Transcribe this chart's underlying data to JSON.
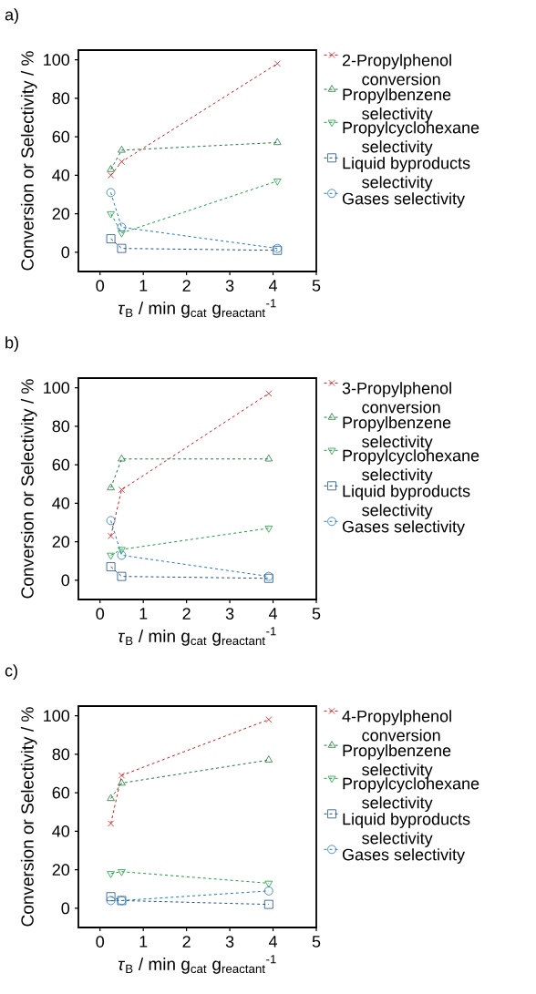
{
  "chart_data": [
    {
      "type": "line",
      "title": "a)",
      "xlabel": "*τ*$_{B}$ / min g$_{cat}$ g$_{reactant}$$^{-1}$",
      "ylabel": "Conversion or Selectivity / %",
      "xlim": [
        -0.5,
        5
      ],
      "ylim": [
        -10,
        105
      ],
      "xticks": [
        0,
        1,
        2,
        3,
        4,
        5
      ],
      "yticks": [
        0,
        20,
        40,
        60,
        80,
        100
      ],
      "legend": "right",
      "line_style": "dashed",
      "series": [
        {
          "name": "2-Propylphenol conversion",
          "color": "#d7191c",
          "marker": "cross",
          "x": [
            0.25,
            0.5,
            4.1
          ],
          "values": [
            40,
            47,
            98
          ]
        },
        {
          "name": "Propylbenzene selectivity",
          "color": "#1e7a3c",
          "marker": "triangle",
          "x": [
            0.25,
            0.5,
            4.1
          ],
          "values": [
            43,
            53,
            57
          ]
        },
        {
          "name": "Propylcyclohexane selectivity",
          "color": "#1a9e3f",
          "marker": "triangle-down",
          "x": [
            0.25,
            0.5,
            4.1
          ],
          "values": [
            20,
            10,
            37
          ]
        },
        {
          "name": "Liquid byproducts selectivity",
          "color": "#1f4f88",
          "marker": "square",
          "x": [
            0.25,
            0.5,
            4.1
          ],
          "values": [
            7,
            2,
            1
          ]
        },
        {
          "name": "Gases selectivity",
          "color": "#1f78c1",
          "marker": "circle",
          "x": [
            0.25,
            0.5,
            4.1
          ],
          "values": [
            31,
            13,
            2
          ]
        }
      ]
    },
    {
      "type": "line",
      "title": "b)",
      "xlabel": "*τ*$_{B}$ / min g$_{cat}$ g$_{reactant}$$^{-1}$",
      "ylabel": "Conversion or Selectivity / %",
      "xlim": [
        -0.5,
        5
      ],
      "ylim": [
        -10,
        105
      ],
      "xticks": [
        0,
        1,
        2,
        3,
        4,
        5
      ],
      "yticks": [
        0,
        20,
        40,
        60,
        80,
        100
      ],
      "legend": "right",
      "line_style": "dashed",
      "series": [
        {
          "name": "3-Propylphenol conversion",
          "color": "#d7191c",
          "marker": "cross",
          "x": [
            0.25,
            0.5,
            3.9
          ],
          "values": [
            23,
            47,
            97
          ]
        },
        {
          "name": "Propylbenzene selectivity",
          "color": "#1e7a3c",
          "marker": "triangle",
          "x": [
            0.25,
            0.5,
            3.9
          ],
          "values": [
            48,
            63,
            63
          ]
        },
        {
          "name": "Propylcyclohexane selectivity",
          "color": "#1a9e3f",
          "marker": "triangle-down",
          "x": [
            0.25,
            0.5,
            3.9
          ],
          "values": [
            13,
            16,
            27
          ]
        },
        {
          "name": "Liquid byproducts selectivity",
          "color": "#1f4f88",
          "marker": "square",
          "x": [
            0.25,
            0.5,
            3.9
          ],
          "values": [
            7,
            2,
            1
          ]
        },
        {
          "name": "Gases selectivity",
          "color": "#1f78c1",
          "marker": "circle",
          "x": [
            0.25,
            0.5,
            3.9
          ],
          "values": [
            31,
            13,
            2
          ]
        }
      ]
    },
    {
      "type": "line",
      "title": "c)",
      "xlabel": "*τ*$_{B}$ / min g$_{cat}$ g$_{reactant}$$^{-1}$",
      "ylabel": "Conversion or Selectivity / %",
      "xlim": [
        -0.5,
        5
      ],
      "ylim": [
        -10,
        105
      ],
      "xticks": [
        0,
        1,
        2,
        3,
        4,
        5
      ],
      "yticks": [
        0,
        20,
        40,
        60,
        80,
        100
      ],
      "legend": "right",
      "line_style": "dashed",
      "series": [
        {
          "name": "4-Propylphenol conversion",
          "color": "#d7191c",
          "marker": "cross",
          "x": [
            0.25,
            0.5,
            3.9
          ],
          "values": [
            44,
            69,
            98
          ]
        },
        {
          "name": "Propylbenzene selectivity",
          "color": "#1e7a3c",
          "marker": "triangle",
          "x": [
            0.25,
            0.5,
            3.9
          ],
          "values": [
            57,
            65,
            77
          ]
        },
        {
          "name": "Propylcyclohexane selectivity",
          "color": "#1a9e3f",
          "marker": "triangle-down",
          "x": [
            0.25,
            0.5,
            3.9
          ],
          "values": [
            18,
            19,
            13
          ]
        },
        {
          "name": "Liquid byproducts selectivity",
          "color": "#1f4f88",
          "marker": "square",
          "x": [
            0.25,
            0.5,
            3.9
          ],
          "values": [
            6,
            4,
            2
          ]
        },
        {
          "name": "Gases selectivity",
          "color": "#1f78c1",
          "marker": "circle",
          "x": [
            0.25,
            0.5,
            3.9
          ],
          "values": [
            4,
            4,
            9
          ]
        }
      ]
    }
  ]
}
